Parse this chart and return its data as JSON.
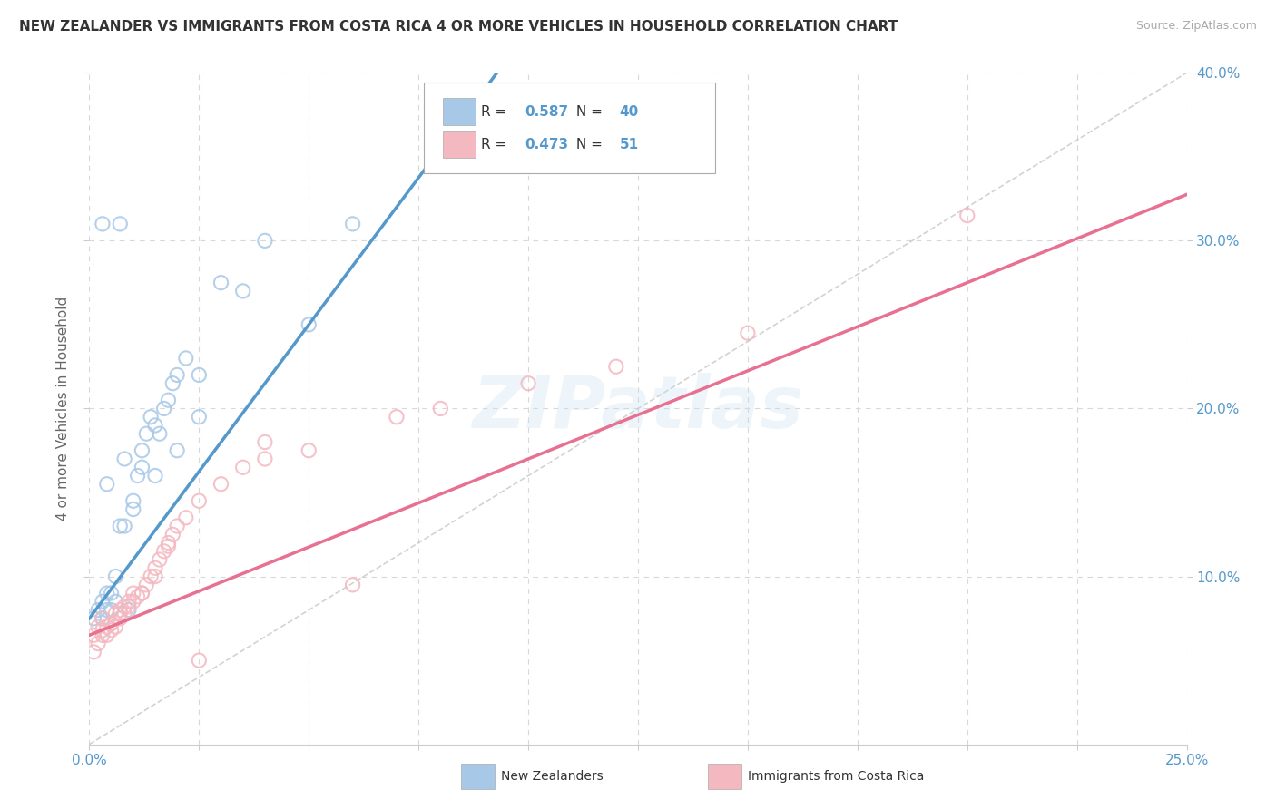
{
  "title": "NEW ZEALANDER VS IMMIGRANTS FROM COSTA RICA 4 OR MORE VEHICLES IN HOUSEHOLD CORRELATION CHART",
  "source": "Source: ZipAtlas.com",
  "ylabel": "4 or more Vehicles in Household",
  "xlim": [
    0.0,
    0.25
  ],
  "ylim": [
    0.0,
    0.4
  ],
  "r_nz": 0.587,
  "n_nz": 40,
  "r_cr": 0.473,
  "n_cr": 51,
  "nz_color": "#a8c8e8",
  "cr_color": "#f4b8c0",
  "nz_line_color": "#5599cc",
  "cr_line_color": "#e87090",
  "diagonal_color": "#c0c0c0",
  "background_color": "#ffffff",
  "grid_color": "#d8d8d8",
  "title_color": "#333333",
  "source_color": "#aaaaaa",
  "legend_label_nz": "New Zealanders",
  "legend_label_cr": "Immigrants from Costa Rica",
  "axis_label_color": "#5599cc",
  "nz_x": [
    0.001,
    0.002,
    0.003,
    0.003,
    0.004,
    0.004,
    0.005,
    0.005,
    0.006,
    0.007,
    0.007,
    0.008,
    0.009,
    0.01,
    0.011,
    0.012,
    0.013,
    0.014,
    0.015,
    0.016,
    0.017,
    0.018,
    0.019,
    0.02,
    0.022,
    0.025,
    0.03,
    0.04,
    0.05,
    0.06,
    0.003,
    0.004,
    0.006,
    0.008,
    0.01,
    0.012,
    0.015,
    0.02,
    0.025,
    0.035
  ],
  "nz_y": [
    0.075,
    0.08,
    0.085,
    0.31,
    0.09,
    0.155,
    0.08,
    0.09,
    0.085,
    0.13,
    0.31,
    0.13,
    0.08,
    0.14,
    0.16,
    0.175,
    0.185,
    0.195,
    0.19,
    0.185,
    0.2,
    0.205,
    0.215,
    0.22,
    0.23,
    0.22,
    0.275,
    0.3,
    0.25,
    0.31,
    0.075,
    0.08,
    0.1,
    0.17,
    0.145,
    0.165,
    0.16,
    0.175,
    0.195,
    0.27
  ],
  "cr_x": [
    0.001,
    0.001,
    0.002,
    0.002,
    0.003,
    0.003,
    0.004,
    0.004,
    0.005,
    0.005,
    0.006,
    0.006,
    0.007,
    0.007,
    0.008,
    0.008,
    0.009,
    0.01,
    0.01,
    0.011,
    0.012,
    0.013,
    0.014,
    0.015,
    0.016,
    0.017,
    0.018,
    0.019,
    0.02,
    0.022,
    0.025,
    0.03,
    0.035,
    0.04,
    0.05,
    0.06,
    0.08,
    0.1,
    0.12,
    0.15,
    0.003,
    0.005,
    0.007,
    0.009,
    0.012,
    0.015,
    0.018,
    0.025,
    0.04,
    0.07,
    0.2
  ],
  "cr_y": [
    0.055,
    0.065,
    0.06,
    0.07,
    0.065,
    0.075,
    0.065,
    0.07,
    0.068,
    0.072,
    0.07,
    0.078,
    0.075,
    0.08,
    0.078,
    0.082,
    0.082,
    0.085,
    0.09,
    0.088,
    0.09,
    0.095,
    0.1,
    0.105,
    0.11,
    0.115,
    0.12,
    0.125,
    0.13,
    0.135,
    0.145,
    0.155,
    0.165,
    0.17,
    0.175,
    0.095,
    0.2,
    0.215,
    0.225,
    0.245,
    0.068,
    0.072,
    0.078,
    0.085,
    0.09,
    0.1,
    0.118,
    0.05,
    0.18,
    0.195,
    0.315
  ]
}
